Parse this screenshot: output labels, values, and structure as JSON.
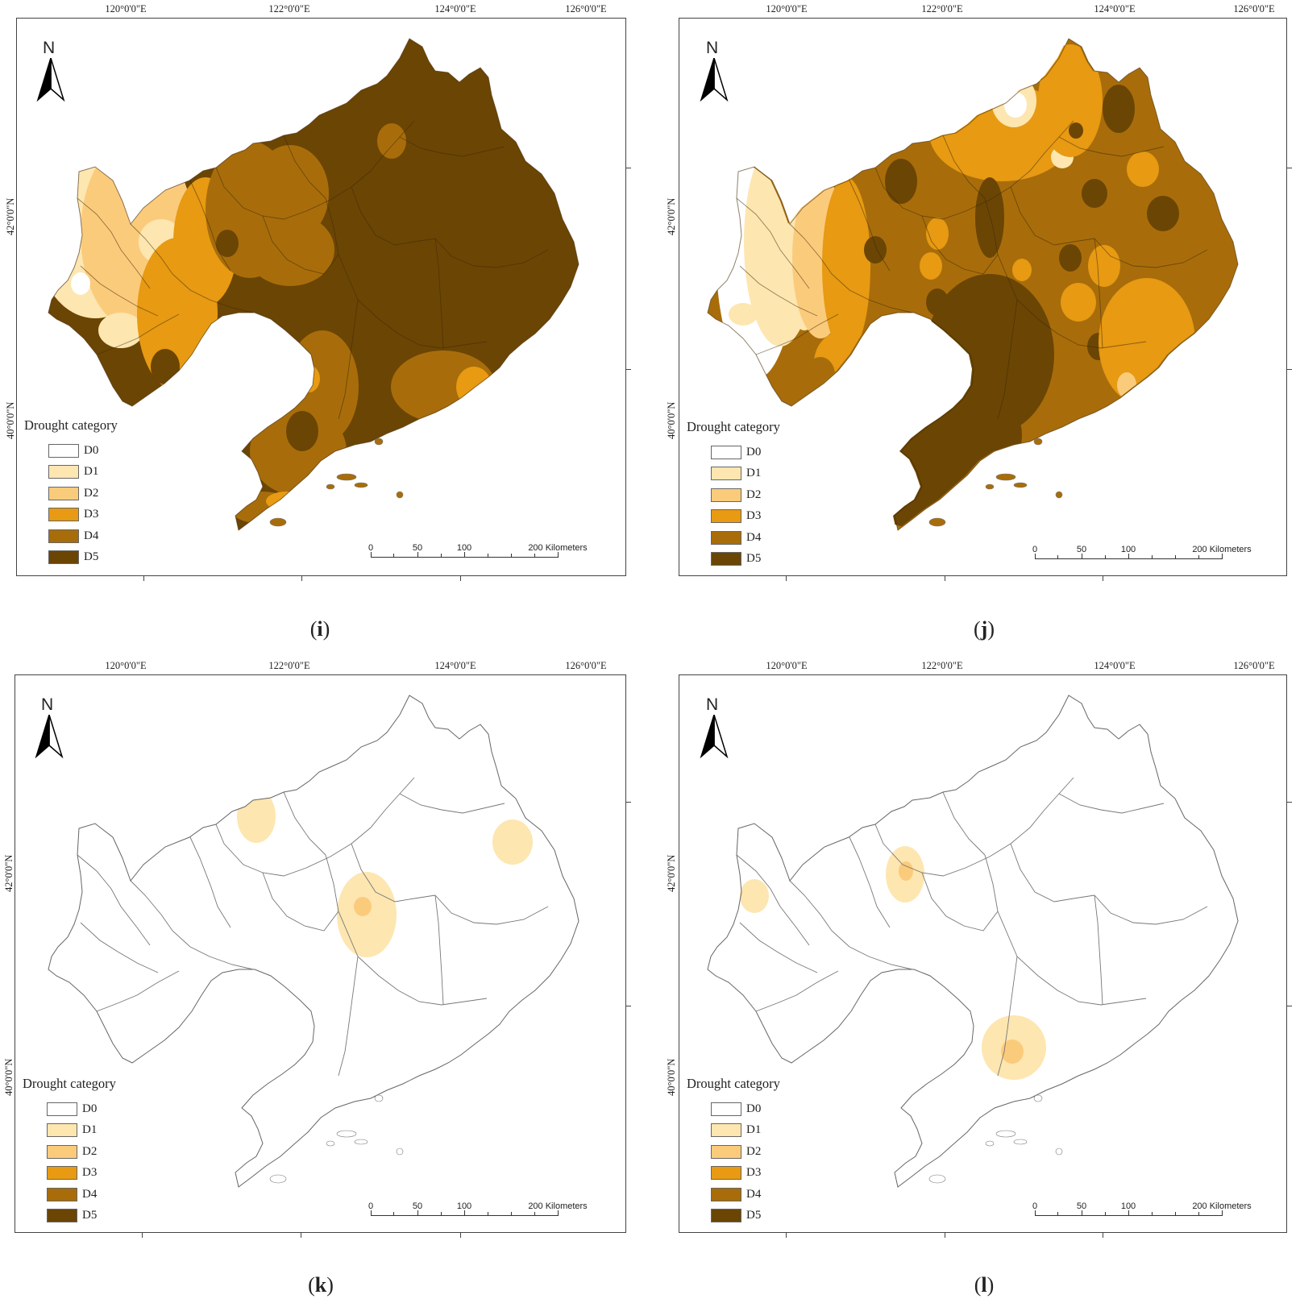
{
  "longitude_labels": [
    "120°0'0\"E",
    "122°0'0\"E",
    "124°0'0\"E",
    "126°0'0\"E"
  ],
  "latitude_labels": [
    "42°0'0\"N",
    "40°0'0\"N"
  ],
  "north_label": "N",
  "legend": {
    "title": "Drought category",
    "categories": [
      {
        "label": "D0",
        "color": "#ffffff"
      },
      {
        "label": "D1",
        "color": "#fde6b0"
      },
      {
        "label": "D2",
        "color": "#fbcb7c"
      },
      {
        "label": "D3",
        "color": "#e79a12"
      },
      {
        "label": "D4",
        "color": "#a86d0a"
      },
      {
        "label": "D5",
        "color": "#6b4504"
      }
    ]
  },
  "scale_bar": {
    "ticks": [
      "0",
      "50",
      "100",
      "200 Kilometers"
    ]
  },
  "panels": [
    {
      "letter": "i",
      "base_category": "D5"
    },
    {
      "letter": "j",
      "base_category": "D4"
    },
    {
      "letter": "k",
      "base_category": "D0"
    },
    {
      "letter": "l",
      "base_category": "D0"
    }
  ]
}
